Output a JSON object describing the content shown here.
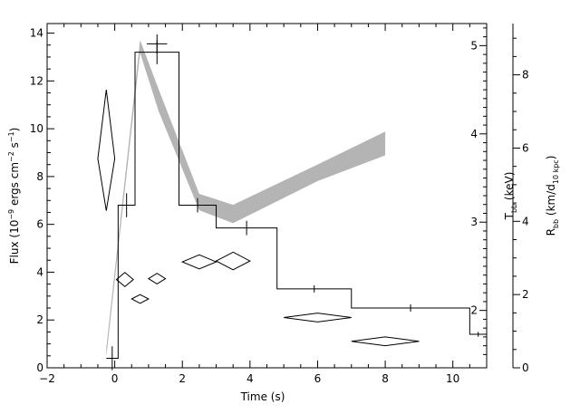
{
  "chart_data": {
    "type": "line",
    "title": "",
    "xlabel": "Time (s)",
    "ylabel_left": {
      "pre": "Flux (10",
      "exp1": "−9",
      "mid1": " ergs cm",
      "exp2": "−2",
      "mid2": " s",
      "exp3": "−1",
      "post": ")"
    },
    "ylabel_right1": {
      "base": "T",
      "sub": "bb",
      "post": " (keV)"
    },
    "ylabel_right2": {
      "base": "R",
      "sub1": "bb",
      "mid": " (km/d",
      "sub2": "10 kpc",
      "post": ")"
    },
    "xlim": [
      -2,
      11
    ],
    "ylim_flux": [
      0,
      14.4
    ],
    "ylim_kT": [
      1.35,
      5.25
    ],
    "ylim_radius": [
      0,
      9.4
    ],
    "x_ticks": [
      "−2",
      "0",
      "2",
      "4",
      "6",
      "8",
      "10"
    ],
    "flux_ticks": [
      "0",
      "2",
      "4",
      "6",
      "8",
      "10",
      "12",
      "14"
    ],
    "kT_ticks": [
      "2",
      "3",
      "4",
      "5"
    ],
    "radius_ticks": [
      "0",
      "2",
      "4",
      "6",
      "8"
    ],
    "series": [
      {
        "kind": "flux-histogram",
        "bins": [
          {
            "x0": -0.25,
            "x1": 0.1,
            "flux": 0.4,
            "err": 0.5
          },
          {
            "x0": 0.1,
            "x1": 0.6,
            "flux": 6.8,
            "err": 0.5
          },
          {
            "x0": 0.6,
            "x1": 1.9,
            "flux": 13.2,
            "err": 0.5
          },
          {
            "x0": 1.9,
            "x1": 3.0,
            "flux": 6.8,
            "err": 0.3
          },
          {
            "x0": 3.0,
            "x1": 4.8,
            "flux": 5.85,
            "err": 0.3
          },
          {
            "x0": 4.8,
            "x1": 7.0,
            "flux": 3.3,
            "err": 0.15
          },
          {
            "x0": 7.0,
            "x1": 10.5,
            "flux": 2.5,
            "err": 0.15
          },
          {
            "x0": 10.5,
            "x1": 11.0,
            "flux": 1.4,
            "err": 0.1
          }
        ],
        "peak_marker": {
          "x": 1.25,
          "flux": 13.55,
          "err": 0.4,
          "xerr": 0.3
        }
      },
      {
        "kind": "radius-band",
        "x": [
          -0.25,
          0.75,
          1.3,
          2.5,
          3.5,
          6.0,
          8.0
        ],
        "low": [
          0.3,
          8.6,
          7.0,
          4.3,
          3.95,
          5.1,
          5.8
        ],
        "high": [
          0.55,
          8.95,
          7.6,
          4.75,
          4.45,
          5.55,
          6.45
        ]
      },
      {
        "kind": "temperature-diamonds",
        "points": [
          {
            "x": -0.25,
            "kT": 3.72,
            "xerr": 0.25,
            "kT_lo": 3.13,
            "kT_hi": 4.5
          },
          {
            "x": 0.3,
            "kT": 2.35,
            "xerr": 0.25,
            "kT_lo": 2.27,
            "kT_hi": 2.43
          },
          {
            "x": 0.75,
            "kT": 2.13,
            "xerr": 0.25,
            "kT_lo": 2.08,
            "kT_hi": 2.18
          },
          {
            "x": 1.25,
            "kT": 2.36,
            "xerr": 0.25,
            "kT_lo": 2.3,
            "kT_hi": 2.42
          },
          {
            "x": 2.5,
            "kT": 2.55,
            "xerr": 0.5,
            "kT_lo": 2.47,
            "kT_hi": 2.63
          },
          {
            "x": 3.5,
            "kT": 2.56,
            "xerr": 0.5,
            "kT_lo": 2.46,
            "kT_hi": 2.66
          },
          {
            "x": 6.0,
            "kT": 1.92,
            "xerr": 1.0,
            "kT_lo": 1.87,
            "kT_hi": 1.97
          },
          {
            "x": 8.0,
            "kT": 1.65,
            "xerr": 1.0,
            "kT_lo": 1.6,
            "kT_hi": 1.7
          }
        ]
      }
    ]
  }
}
